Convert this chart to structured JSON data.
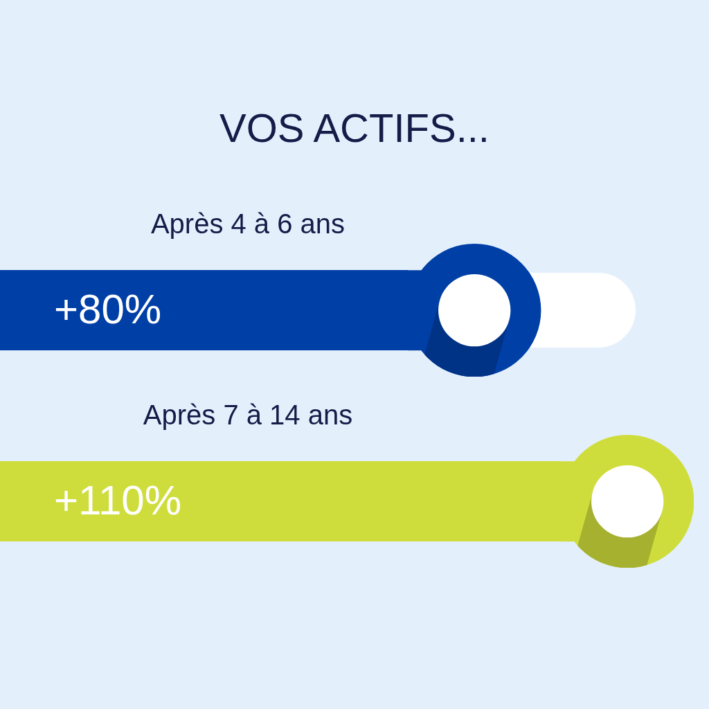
{
  "chart_data": {
    "type": "bar",
    "title": "VOS ACTIFS...",
    "orientation": "horizontal",
    "categories": [
      "Après 4 à 6 ans",
      "Après 7 à 14 ans"
    ],
    "values": [
      80,
      110
    ],
    "colors": [
      "#003fa6",
      "#cfdd3c"
    ],
    "value_labels": [
      "+80%",
      "+110%"
    ],
    "tick_labels": "y",
    "legend": false
  }
}
